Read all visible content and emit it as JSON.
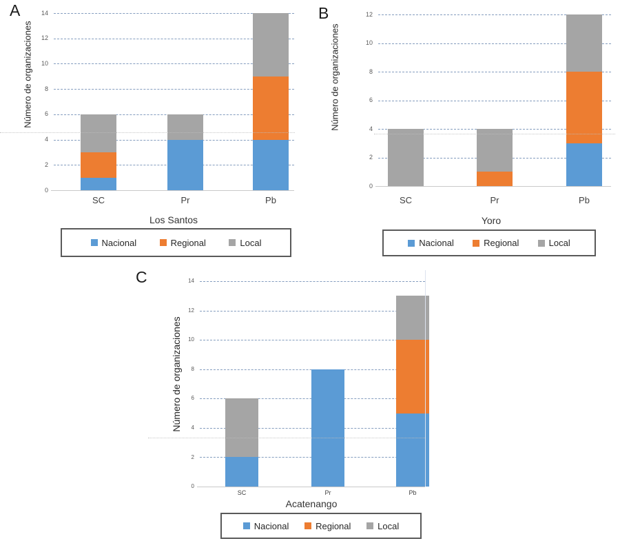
{
  "figure": {
    "background": "#ffffff"
  },
  "legend": {
    "items": [
      {
        "label": "Nacional",
        "color": "#5B9BD5"
      },
      {
        "label": "Regional",
        "color": "#ED7D31"
      },
      {
        "label": "Local",
        "color": "#A5A5A5"
      }
    ]
  },
  "colors": {
    "nacional": "#5B9BD5",
    "regional": "#ED7D31",
    "local": "#A5A5A5",
    "gridline": "#839cbe",
    "axis": "#c9c9c9"
  },
  "chart_data": [
    {
      "type": "bar",
      "stacked": true,
      "panel_label": "A",
      "title": "Los Santos",
      "ylabel": "Número de organizaciones",
      "categories": [
        "SC",
        "Pr",
        "Pb"
      ],
      "series": [
        {
          "name": "Nacional",
          "color": "#5B9BD5",
          "values": [
            1,
            4,
            4
          ]
        },
        {
          "name": "Regional",
          "color": "#ED7D31",
          "values": [
            2,
            0,
            5
          ]
        },
        {
          "name": "Local",
          "color": "#A5A5A5",
          "values": [
            3,
            2,
            5
          ]
        }
      ],
      "totals": [
        6,
        6,
        14
      ],
      "ylim": [
        0,
        14
      ],
      "ytick_step": 2,
      "grid": "horizontal-dashed",
      "legend_position": "bottom"
    },
    {
      "type": "bar",
      "stacked": true,
      "panel_label": "B",
      "title": "Yoro",
      "ylabel": "Número de organizaciones",
      "categories": [
        "SC",
        "Pr",
        "Pb"
      ],
      "series": [
        {
          "name": "Nacional",
          "color": "#5B9BD5",
          "values": [
            0,
            0,
            3
          ]
        },
        {
          "name": "Regional",
          "color": "#ED7D31",
          "values": [
            0,
            1,
            5
          ]
        },
        {
          "name": "Local",
          "color": "#A5A5A5",
          "values": [
            4,
            3,
            4
          ]
        }
      ],
      "totals": [
        4,
        4,
        12
      ],
      "ylim": [
        0,
        12
      ],
      "ytick_step": 2,
      "grid": "horizontal-dashed",
      "legend_position": "bottom"
    },
    {
      "type": "bar",
      "stacked": true,
      "panel_label": "C",
      "title": "Acatenango",
      "ylabel": "Número de organizaciones",
      "categories": [
        "SC",
        "Pr",
        "Pb"
      ],
      "series": [
        {
          "name": "Nacional",
          "color": "#5B9BD5",
          "values": [
            2,
            8,
            5
          ]
        },
        {
          "name": "Regional",
          "color": "#ED7D31",
          "values": [
            0,
            0,
            5
          ]
        },
        {
          "name": "Local",
          "color": "#A5A5A5",
          "values": [
            4,
            0,
            3
          ]
        }
      ],
      "totals": [
        6,
        8,
        13
      ],
      "ylim": [
        0,
        14
      ],
      "ytick_step": 2,
      "grid": "horizontal-dashed",
      "legend_position": "bottom"
    }
  ]
}
